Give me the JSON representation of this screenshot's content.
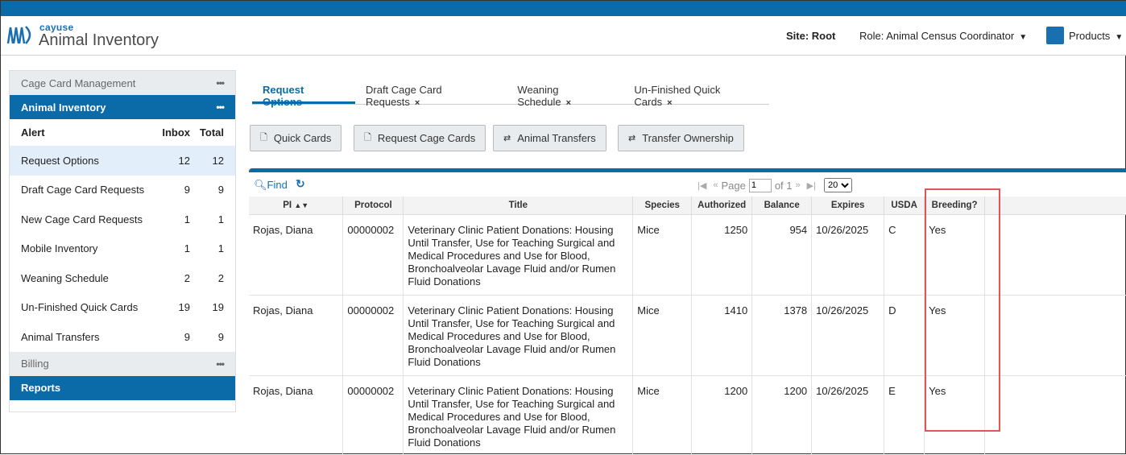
{
  "header": {
    "brand_small": "cayuse",
    "title": "Animal Inventory",
    "site": "Site: Root",
    "role": "Role: Animal Census Coordinator",
    "products": "Products"
  },
  "sidebar": {
    "sections": [
      "Cage Card Management",
      "Animal Inventory",
      "Billing",
      "Reports"
    ],
    "columns": {
      "alert": "Alert",
      "inbox": "Inbox",
      "total": "Total"
    },
    "items": [
      {
        "label": "Request Options",
        "inbox": "12",
        "total": "12"
      },
      {
        "label": "Draft Cage Card Requests",
        "inbox": "9",
        "total": "9"
      },
      {
        "label": "New Cage Card Requests",
        "inbox": "1",
        "total": "1"
      },
      {
        "label": "Mobile Inventory",
        "inbox": "1",
        "total": "1"
      },
      {
        "label": "Weaning Schedule",
        "inbox": "2",
        "total": "2"
      },
      {
        "label": "Un-Finished Quick Cards",
        "inbox": "19",
        "total": "19"
      },
      {
        "label": "Animal Transfers",
        "inbox": "9",
        "total": "9"
      }
    ]
  },
  "tabs": [
    "Request Options",
    "Draft Cage Card Requests",
    "Weaning Schedule",
    "Un-Finished Quick Cards"
  ],
  "buttons": [
    "Quick Cards",
    "Request Cage Cards",
    "Animal Transfers",
    "Transfer Ownership"
  ],
  "grid": {
    "find": "Find",
    "page_label": "Page",
    "page_value": "1",
    "of_label": "of 1",
    "page_size": "20",
    "columns": [
      "PI",
      "Protocol",
      "Title",
      "Species",
      "Authorized",
      "Balance",
      "Expires",
      "USDA",
      "Breeding?"
    ],
    "rows": [
      {
        "pi": "Rojas, Diana",
        "protocol": "00000002",
        "title": "Veterinary Clinic Patient Donations: Housing Until Transfer, Use for Teaching Surgical and Medical Procedures and Use for Blood, Bronchoalveolar Lavage Fluid and/or Rumen Fluid Donations",
        "species": "Mice",
        "authorized": "1250",
        "balance": "954",
        "expires": "10/26/2025",
        "usda": "C",
        "breeding": "Yes"
      },
      {
        "pi": "Rojas, Diana",
        "protocol": "00000002",
        "title": "Veterinary Clinic Patient Donations: Housing Until Transfer, Use for Teaching Surgical and Medical Procedures and Use for Blood, Bronchoalveolar Lavage Fluid and/or Rumen Fluid Donations",
        "species": "Mice",
        "authorized": "1410",
        "balance": "1378",
        "expires": "10/26/2025",
        "usda": "D",
        "breeding": "Yes"
      },
      {
        "pi": "Rojas, Diana",
        "protocol": "00000002",
        "title": "Veterinary Clinic Patient Donations: Housing Until Transfer, Use for Teaching Surgical and Medical Procedures and Use for Blood, Bronchoalveolar Lavage Fluid and/or Rumen Fluid Donations",
        "species": "Mice",
        "authorized": "1200",
        "balance": "1200",
        "expires": "10/26/2025",
        "usda": "E",
        "breeding": "Yes"
      }
    ]
  },
  "colors": {
    "brand_blue": "#0b6aa8",
    "highlight": "#e05555"
  }
}
